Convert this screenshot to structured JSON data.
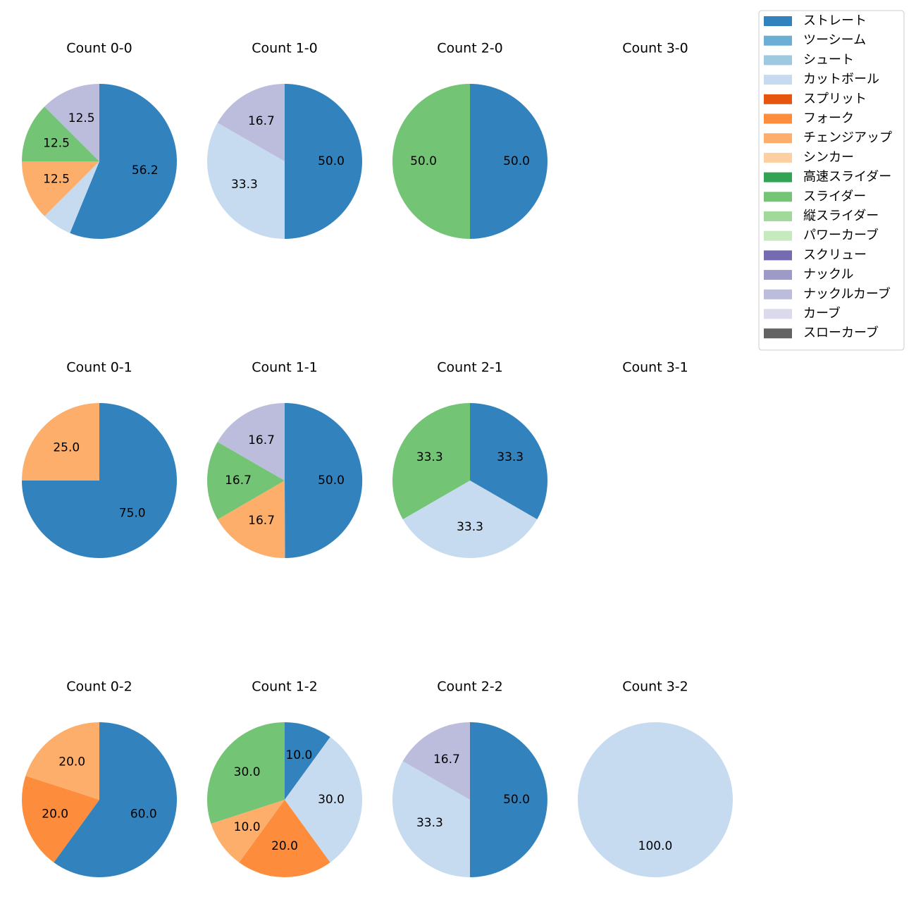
{
  "chart_data": {
    "type": "pie",
    "legend": {
      "placement": "top-right",
      "entries": [
        {
          "name": "ストレート",
          "color": "#3182bd"
        },
        {
          "name": "ツーシーム",
          "color": "#6baed6"
        },
        {
          "name": "シュート",
          "color": "#9ecae1"
        },
        {
          "name": "カットボール",
          "color": "#c6dbef"
        },
        {
          "name": "スプリット",
          "color": "#e6550d"
        },
        {
          "name": "フォーク",
          "color": "#fd8d3c"
        },
        {
          "name": "チェンジアップ",
          "color": "#fdae6b"
        },
        {
          "name": "シンカー",
          "color": "#fdd0a2"
        },
        {
          "name": "高速スライダー",
          "color": "#31a354"
        },
        {
          "name": "スライダー",
          "color": "#74c476"
        },
        {
          "name": "縦スライダー",
          "color": "#a1d99b"
        },
        {
          "name": "パワーカーブ",
          "color": "#c7e9c0"
        },
        {
          "name": "スクリュー",
          "color": "#756bb1"
        },
        {
          "name": "ナックル",
          "color": "#9e9ac8"
        },
        {
          "name": "ナックルカーブ",
          "color": "#bcbddc"
        },
        {
          "name": "カーブ",
          "color": "#dadaeb"
        },
        {
          "name": "スローカーブ",
          "color": "#636363"
        }
      ]
    },
    "charts": [
      {
        "title": "Count 0-0",
        "slices": [
          {
            "pitch": "ストレート",
            "value": 56.2,
            "label": "56.2"
          },
          {
            "pitch": "カットボール",
            "value": 6.3,
            "label": ""
          },
          {
            "pitch": "チェンジアップ",
            "value": 12.5,
            "label": "12.5"
          },
          {
            "pitch": "スライダー",
            "value": 12.5,
            "label": "12.5"
          },
          {
            "pitch": "ナックルカーブ",
            "value": 12.5,
            "label": "12.5"
          }
        ]
      },
      {
        "title": "Count 1-0",
        "slices": [
          {
            "pitch": "ストレート",
            "value": 50.0,
            "label": "50.0"
          },
          {
            "pitch": "カットボール",
            "value": 33.3,
            "label": "33.3"
          },
          {
            "pitch": "ナックルカーブ",
            "value": 16.7,
            "label": "16.7"
          }
        ]
      },
      {
        "title": "Count 2-0",
        "slices": [
          {
            "pitch": "ストレート",
            "value": 50.0,
            "label": "50.0"
          },
          {
            "pitch": "スライダー",
            "value": 50.0,
            "label": "50.0"
          }
        ]
      },
      {
        "title": "Count 3-0",
        "slices": []
      },
      {
        "title": "Count 0-1",
        "slices": [
          {
            "pitch": "ストレート",
            "value": 75.0,
            "label": "75.0"
          },
          {
            "pitch": "チェンジアップ",
            "value": 25.0,
            "label": "25.0"
          }
        ]
      },
      {
        "title": "Count 1-1",
        "slices": [
          {
            "pitch": "ストレート",
            "value": 50.0,
            "label": "50.0"
          },
          {
            "pitch": "チェンジアップ",
            "value": 16.7,
            "label": "16.7"
          },
          {
            "pitch": "スライダー",
            "value": 16.7,
            "label": "16.7"
          },
          {
            "pitch": "ナックルカーブ",
            "value": 16.7,
            "label": "16.7"
          }
        ]
      },
      {
        "title": "Count 2-1",
        "slices": [
          {
            "pitch": "ストレート",
            "value": 33.3,
            "label": "33.3"
          },
          {
            "pitch": "カットボール",
            "value": 33.3,
            "label": "33.3"
          },
          {
            "pitch": "スライダー",
            "value": 33.3,
            "label": "33.3"
          }
        ]
      },
      {
        "title": "Count 3-1",
        "slices": []
      },
      {
        "title": "Count 0-2",
        "slices": [
          {
            "pitch": "ストレート",
            "value": 60.0,
            "label": "60.0"
          },
          {
            "pitch": "フォーク",
            "value": 20.0,
            "label": "20.0"
          },
          {
            "pitch": "チェンジアップ",
            "value": 20.0,
            "label": "20.0"
          }
        ]
      },
      {
        "title": "Count 1-2",
        "slices": [
          {
            "pitch": "ストレート",
            "value": 10.0,
            "label": "10.0"
          },
          {
            "pitch": "カットボール",
            "value": 30.0,
            "label": "30.0"
          },
          {
            "pitch": "フォーク",
            "value": 20.0,
            "label": "20.0"
          },
          {
            "pitch": "チェンジアップ",
            "value": 10.0,
            "label": "10.0"
          },
          {
            "pitch": "スライダー",
            "value": 30.0,
            "label": "30.0"
          }
        ]
      },
      {
        "title": "Count 2-2",
        "slices": [
          {
            "pitch": "ストレート",
            "value": 50.0,
            "label": "50.0"
          },
          {
            "pitch": "カットボール",
            "value": 33.3,
            "label": "33.3"
          },
          {
            "pitch": "ナックルカーブ",
            "value": 16.7,
            "label": "16.7"
          }
        ]
      },
      {
        "title": "Count 3-2",
        "slices": [
          {
            "pitch": "カットボール",
            "value": 100.0,
            "label": "100.0"
          }
        ]
      }
    ]
  }
}
